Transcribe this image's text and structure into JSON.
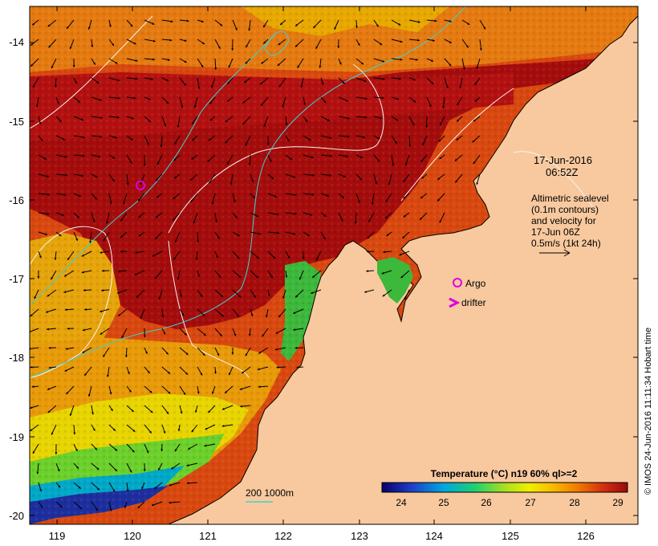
{
  "map": {
    "datetime_line1": "17-Jun-2016",
    "datetime_line2": "06:52Z",
    "legend_lines": [
      "Altimetric sealevel",
      "(0.1m contours)",
      "and velocity for",
      "17-Jun 06Z",
      "0.5m/s (1kt 24h)"
    ],
    "argo_label": "Argo",
    "drifter_label": "drifter",
    "depth_label": "200  1000m",
    "colorbar_title": "Temperature (°C) n19 60% ql>=2",
    "colorbar_ticks": [
      "24",
      "25",
      "26",
      "27",
      "28",
      "29"
    ],
    "credit": "© IMOS 24-Jun-2016 11:11:34 Hobart time",
    "lat_ticks": [
      "-14",
      "-15",
      "-16",
      "-17",
      "-18",
      "-19",
      "-20"
    ],
    "lon_ticks": [
      "119",
      "120",
      "121",
      "122",
      "123",
      "124",
      "125",
      "126"
    ],
    "colors": {
      "land": "#f8c99e",
      "sst_hot": "#a50c0c",
      "sst_warm": "#d9480f",
      "sst_mid": "#f4a300",
      "sst_cool": "#f0f000",
      "sst_green": "#4cc82d",
      "sst_cyan": "#00b8d8",
      "sst_blue": "#1d2e9e",
      "argo": "#e000e0",
      "contour_200": "#40d0d0"
    }
  }
}
